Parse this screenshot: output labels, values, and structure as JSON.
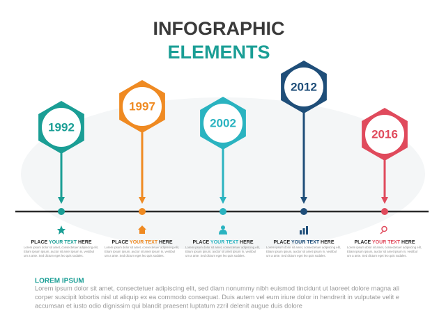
{
  "header": {
    "title": "INFOGRAPHIC",
    "subtitle": "ELEMENTS"
  },
  "milestones": [
    {
      "year": "1992",
      "color": "#1a9e95",
      "heading": [
        "PLACE ",
        "YOUR TEXT",
        " HERE"
      ],
      "body": [
        "Lorem ipsum dolor sit amet, consectetuer adipiscing elit,",
        "Etiam ipsum ipsum, auctor sit amet ipsum in, vestibul",
        "um a ante. Sed dictum eget leo quis sodales."
      ]
    },
    {
      "year": "1997",
      "color": "#ef8a22",
      "heading": [
        "PLACE ",
        "YOUR TEXT",
        " HERE"
      ],
      "body": [
        "Lorem ipsum dolor sit amet, consectetuer adipiscing elit,",
        "Etiam ipsum ipsum, auctor sit amet ipsum in, vestibul",
        "um a ante. Sed dictum eget leo quis sodales."
      ]
    },
    {
      "year": "2002",
      "color": "#2ab3c0",
      "heading": [
        "PLACE ",
        "YOUR TEXT",
        " HERE"
      ],
      "body": [
        "Lorem ipsum dolor sit amet, consectetuer adipiscing elit,",
        "Etiam ipsum ipsum, auctor sit amet ipsum in, vestibul",
        "um a ante. Sed dictum eget leo quis sodales."
      ]
    },
    {
      "year": "2012",
      "color": "#1f4e79",
      "heading": [
        "PLACE ",
        "YOUR TEXT",
        " HERE"
      ],
      "body": [
        "Lorem ipsum dolor sit amet, consectetuer adipiscing elit,",
        "Etiam ipsum ipsum, auctor sit amet ipsum in, vestibul",
        "um a ante. Sed dictum eget leo quis sodales."
      ]
    },
    {
      "year": "2016",
      "color": "#e04a5c",
      "heading": [
        "PLACE ",
        "YOUR TEXT",
        " HERE"
      ],
      "body": [
        "Lorem ipsum dolor sit amet, consectetuer adipiscing elit,",
        "Etiam ipsum ipsum, auctor sit amet ipsum in, vestibul",
        "um a ante. Sed dictum eget leo quis sodales."
      ]
    }
  ],
  "footer": {
    "heading": "LOREM IPSUM",
    "lines": [
      "Lorem ipsum dolor sit amet, consectetuer adipiscing elit, sed diam nonummy nibh euismod tincidunt ut laoreet dolore magna ali",
      "corper suscipit lobortis nisl ut aliquip ex ea commodo consequat. Duis autem vel eum iriure dolor in hendrerit in vulputate velit e",
      "accumsan et iusto odio dignissim qui blandit praesent luptatum zzril delenit augue duis dolore"
    ]
  }
}
